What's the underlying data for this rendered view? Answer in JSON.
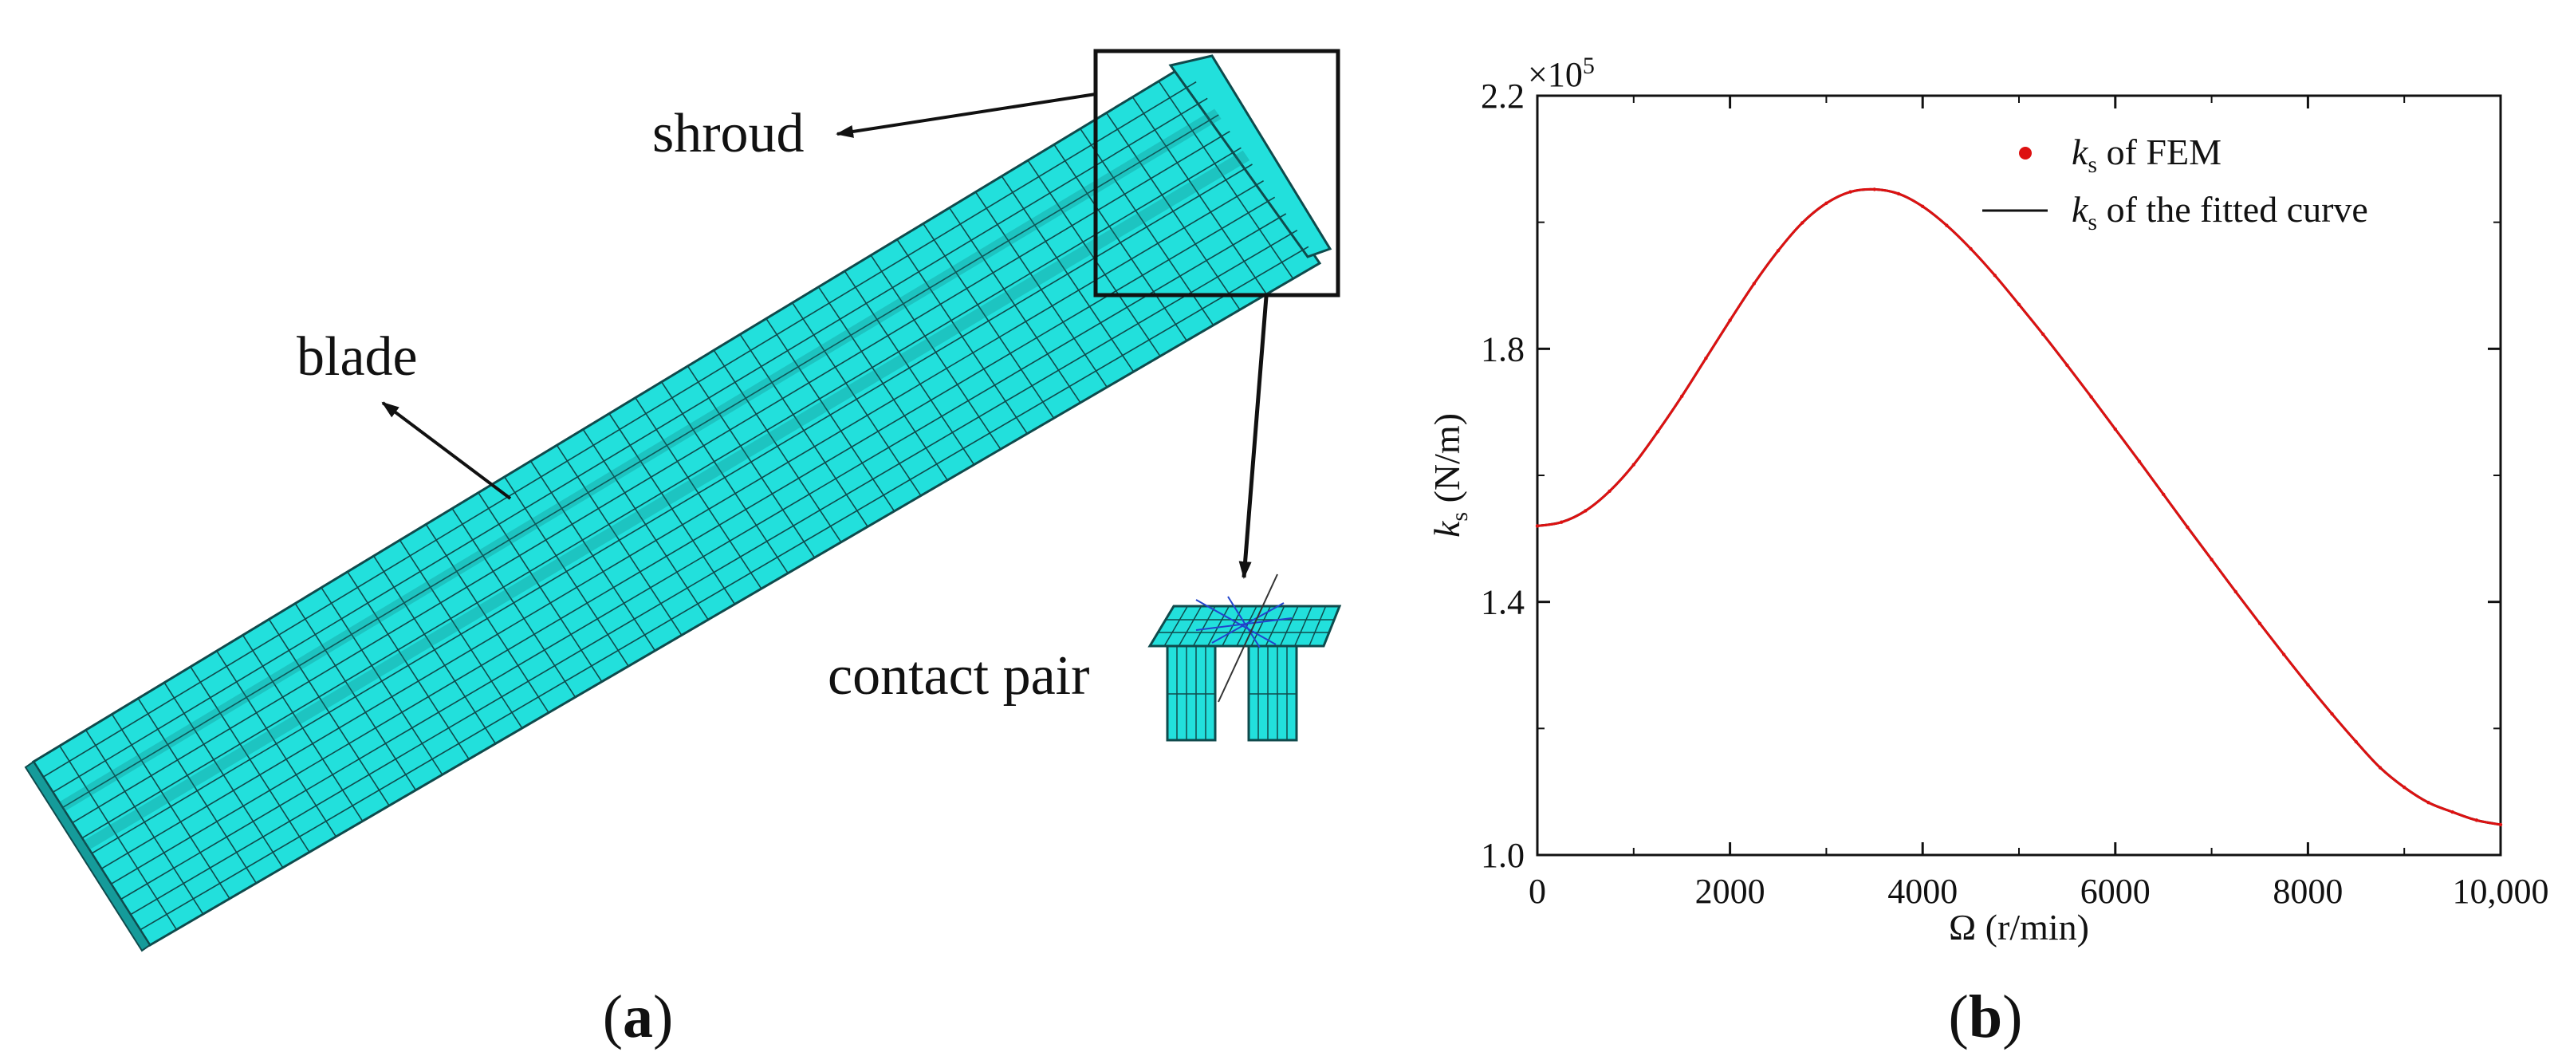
{
  "panel_a": {
    "labels": {
      "shroud": "shroud",
      "blade": "blade",
      "contact_pair": "contact pair"
    },
    "caption": {
      "open": "(",
      "letter": "a",
      "close": ")"
    }
  },
  "panel_b": {
    "caption": {
      "open": "(",
      "letter": "b",
      "close": ")"
    }
  },
  "colors": {
    "mesh_fill": "#22e0dc",
    "mesh_line": "#0f4a4c",
    "fem_points": "#dd1111",
    "fitted_curve": "#111111",
    "detail_lines": "#2244cc"
  },
  "chart_data": {
    "type": "line",
    "title": "",
    "xlabel": "Ω (r/min)",
    "ylabel": {
      "symbol": "k",
      "subscript": "s",
      "unit": " (N/m)"
    },
    "xlim": [
      0,
      10000
    ],
    "ylim": [
      100000,
      220000
    ],
    "y_multiplier": {
      "base": "×10",
      "exp": "5"
    },
    "x_ticks": [
      {
        "value": 0,
        "label": "0"
      },
      {
        "value": 2000,
        "label": "2000"
      },
      {
        "value": 4000,
        "label": "4000"
      },
      {
        "value": 6000,
        "label": "6000"
      },
      {
        "value": 8000,
        "label": "8000"
      },
      {
        "value": 10000,
        "label": "10,000"
      }
    ],
    "y_ticks": [
      {
        "value": 100000,
        "label": "1.0"
      },
      {
        "value": 140000,
        "label": "1.4"
      },
      {
        "value": 180000,
        "label": "1.8"
      },
      {
        "value": 220000,
        "label": "2.2"
      }
    ],
    "grid": false,
    "legend_position": "top-right",
    "series": [
      {
        "name": {
          "symbol": "k",
          "subscript": "s",
          "text": " of FEM"
        },
        "style": "points",
        "x": [
          0,
          250,
          500,
          750,
          1000,
          1250,
          1500,
          1750,
          2000,
          2250,
          2500,
          2750,
          3000,
          3250,
          3500,
          3750,
          4000,
          4250,
          4500,
          4750,
          5000,
          5250,
          5500,
          5750,
          6000,
          6250,
          6500,
          6750,
          7000,
          7250,
          7500,
          7750,
          8000,
          8250,
          8500,
          8750,
          9000,
          9250,
          9500,
          9750,
          10000
        ],
        "y": [
          152000,
          152600,
          154400,
          157500,
          161700,
          166900,
          172500,
          178500,
          184500,
          190300,
          195500,
          199900,
          203000,
          204800,
          205200,
          204500,
          202500,
          199500,
          195800,
          191600,
          187000,
          182300,
          177400,
          172400,
          167300,
          162200,
          157000,
          151800,
          146700,
          141600,
          136600,
          131700,
          126900,
          122300,
          117900,
          113800,
          110700,
          108300,
          106800,
          105500,
          104800
        ]
      },
      {
        "name": {
          "symbol": "k",
          "subscript": "s",
          "text": " of the fitted curve"
        },
        "style": "line",
        "x": [
          0,
          250,
          500,
          750,
          1000,
          1250,
          1500,
          1750,
          2000,
          2250,
          2500,
          2750,
          3000,
          3250,
          3500,
          3750,
          4000,
          4250,
          4500,
          4750,
          5000,
          5250,
          5500,
          5750,
          6000,
          6250,
          6500,
          6750,
          7000,
          7250,
          7500,
          7750,
          8000,
          8250,
          8500,
          8750,
          9000,
          9250,
          9500,
          9750,
          10000
        ],
        "y": [
          152000,
          152600,
          154400,
          157500,
          161700,
          166900,
          172500,
          178500,
          184500,
          190300,
          195500,
          199900,
          203000,
          204800,
          205200,
          204500,
          202500,
          199500,
          195800,
          191600,
          187000,
          182300,
          177400,
          172400,
          167300,
          162200,
          157000,
          151800,
          146700,
          141600,
          136600,
          131700,
          126900,
          122300,
          117900,
          113800,
          110700,
          108300,
          106800,
          105500,
          104800
        ]
      }
    ]
  }
}
